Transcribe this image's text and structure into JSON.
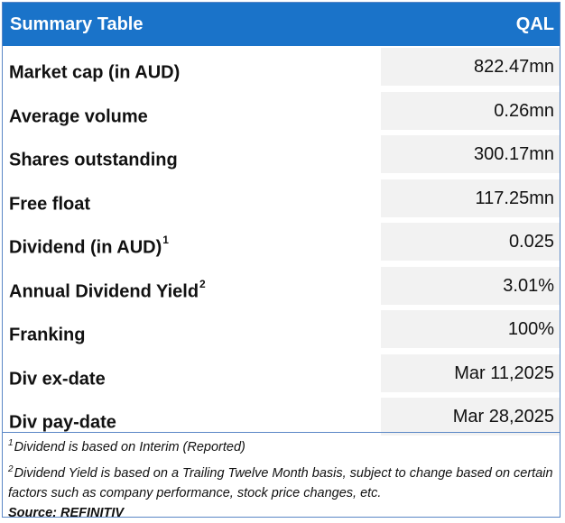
{
  "header": {
    "title": "Summary Table",
    "ticker": "QAL"
  },
  "rows": [
    {
      "label": "Market cap (in AUD)",
      "sup": "",
      "value": "822.47mn"
    },
    {
      "label": "Average volume",
      "sup": "",
      "value": "0.26mn"
    },
    {
      "label": "Shares outstanding",
      "sup": "",
      "value": "300.17mn"
    },
    {
      "label": "Free float",
      "sup": "",
      "value": "117.25mn"
    },
    {
      "label": "Dividend (in AUD)",
      "sup": "1",
      "value": "0.025"
    },
    {
      "label": "Annual Dividend Yield",
      "sup": "2",
      "value": "3.01%"
    },
    {
      "label": "Franking",
      "sup": "",
      "value": "100%"
    },
    {
      "label": "Div ex-date",
      "sup": "",
      "value": "Mar 11,2025"
    },
    {
      "label": "Div pay-date",
      "sup": "",
      "value": "Mar 28,2025"
    }
  ],
  "footnotes": {
    "note1_mark": "1",
    "note1_text": "Dividend is based on Interim (Reported)",
    "note2_mark": "2",
    "note2_text": "Dividend Yield is based on a Trailing Twelve Month basis, subject to change based on certain factors such as company performance, stock price changes, etc.",
    "source": "Source: REFINITIV"
  },
  "colors": {
    "header_bg": "#1a73c9",
    "value_bg": "#f2f2f2",
    "border": "#5a87c6"
  }
}
